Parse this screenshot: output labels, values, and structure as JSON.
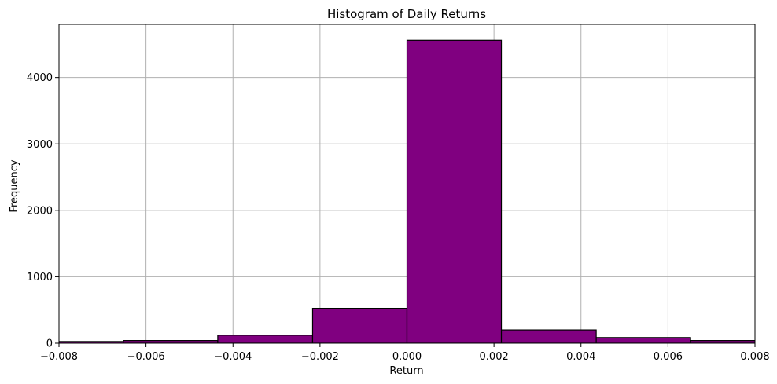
{
  "chart_data": {
    "type": "bar",
    "title": "Histogram of Daily Returns",
    "xlabel": "Return",
    "ylabel": "Frequency",
    "xlim": [
      -0.008,
      0.008
    ],
    "ylim": [
      0,
      4800
    ],
    "x_ticks": [
      -0.008,
      -0.006,
      -0.004,
      -0.002,
      0.0,
      0.002,
      0.004,
      0.006,
      0.008
    ],
    "x_tick_labels": [
      "−0.008",
      "−0.006",
      "−0.004",
      "−0.002",
      "0.000",
      "0.002",
      "0.004",
      "0.006",
      "0.008"
    ],
    "y_ticks": [
      0,
      1000,
      2000,
      3000,
      4000
    ],
    "y_tick_labels": [
      "0",
      "1000",
      "2000",
      "3000",
      "4000"
    ],
    "grid": true,
    "bar_color": "#800080",
    "edge_color": "#000000",
    "bins": [
      {
        "x0": -0.0087,
        "x1": -0.00652,
        "value": 25
      },
      {
        "x0": -0.00652,
        "x1": -0.00435,
        "value": 40
      },
      {
        "x0": -0.00435,
        "x1": -0.00217,
        "value": 120
      },
      {
        "x0": -0.00217,
        "x1": 0.0,
        "value": 525
      },
      {
        "x0": 0.0,
        "x1": 0.00217,
        "value": 4560
      },
      {
        "x0": 0.00217,
        "x1": 0.00435,
        "value": 200
      },
      {
        "x0": 0.00435,
        "x1": 0.00652,
        "value": 85
      },
      {
        "x0": 0.00652,
        "x1": 0.0087,
        "value": 40
      }
    ]
  }
}
